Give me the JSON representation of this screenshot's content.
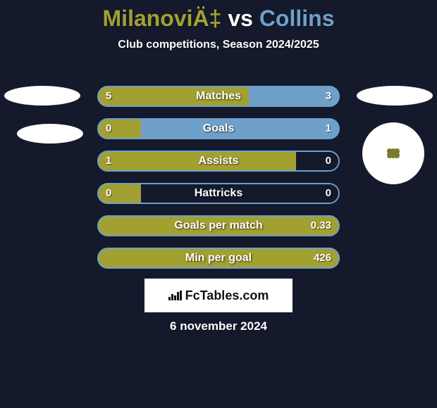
{
  "background_color": "#14192c",
  "text_color": "#ffffff",
  "title": {
    "left_name": "MilanoviÄ‡",
    "vs": "vs",
    "right_name": "Collins",
    "left_color": "#a3a032",
    "right_color": "#6fa0c9"
  },
  "subtitle": "Club competitions, Season 2024/2025",
  "left_color": "#a3a032",
  "right_color": "#6fa0c9",
  "border_color": "#6fa0c9",
  "rows": [
    {
      "label": "Matches",
      "left": "5",
      "right": "3",
      "left_pct": 62.5,
      "right_pct": 37.5
    },
    {
      "label": "Goals",
      "left": "0",
      "right": "1",
      "left_pct": 18,
      "right_pct": 82
    },
    {
      "label": "Assists",
      "left": "1",
      "right": "0",
      "left_pct": 82,
      "right_pct": 0
    },
    {
      "label": "Hattricks",
      "left": "0",
      "right": "0",
      "left_pct": 18,
      "right_pct": 0
    },
    {
      "label": "Goals per match",
      "left": "",
      "right": "0.33",
      "left_pct": 100,
      "right_pct": 0
    },
    {
      "label": "Min per goal",
      "left": "",
      "right": "426",
      "left_pct": 100,
      "right_pct": 0
    }
  ],
  "brand": "FcTables.com",
  "date": "6 november 2024"
}
